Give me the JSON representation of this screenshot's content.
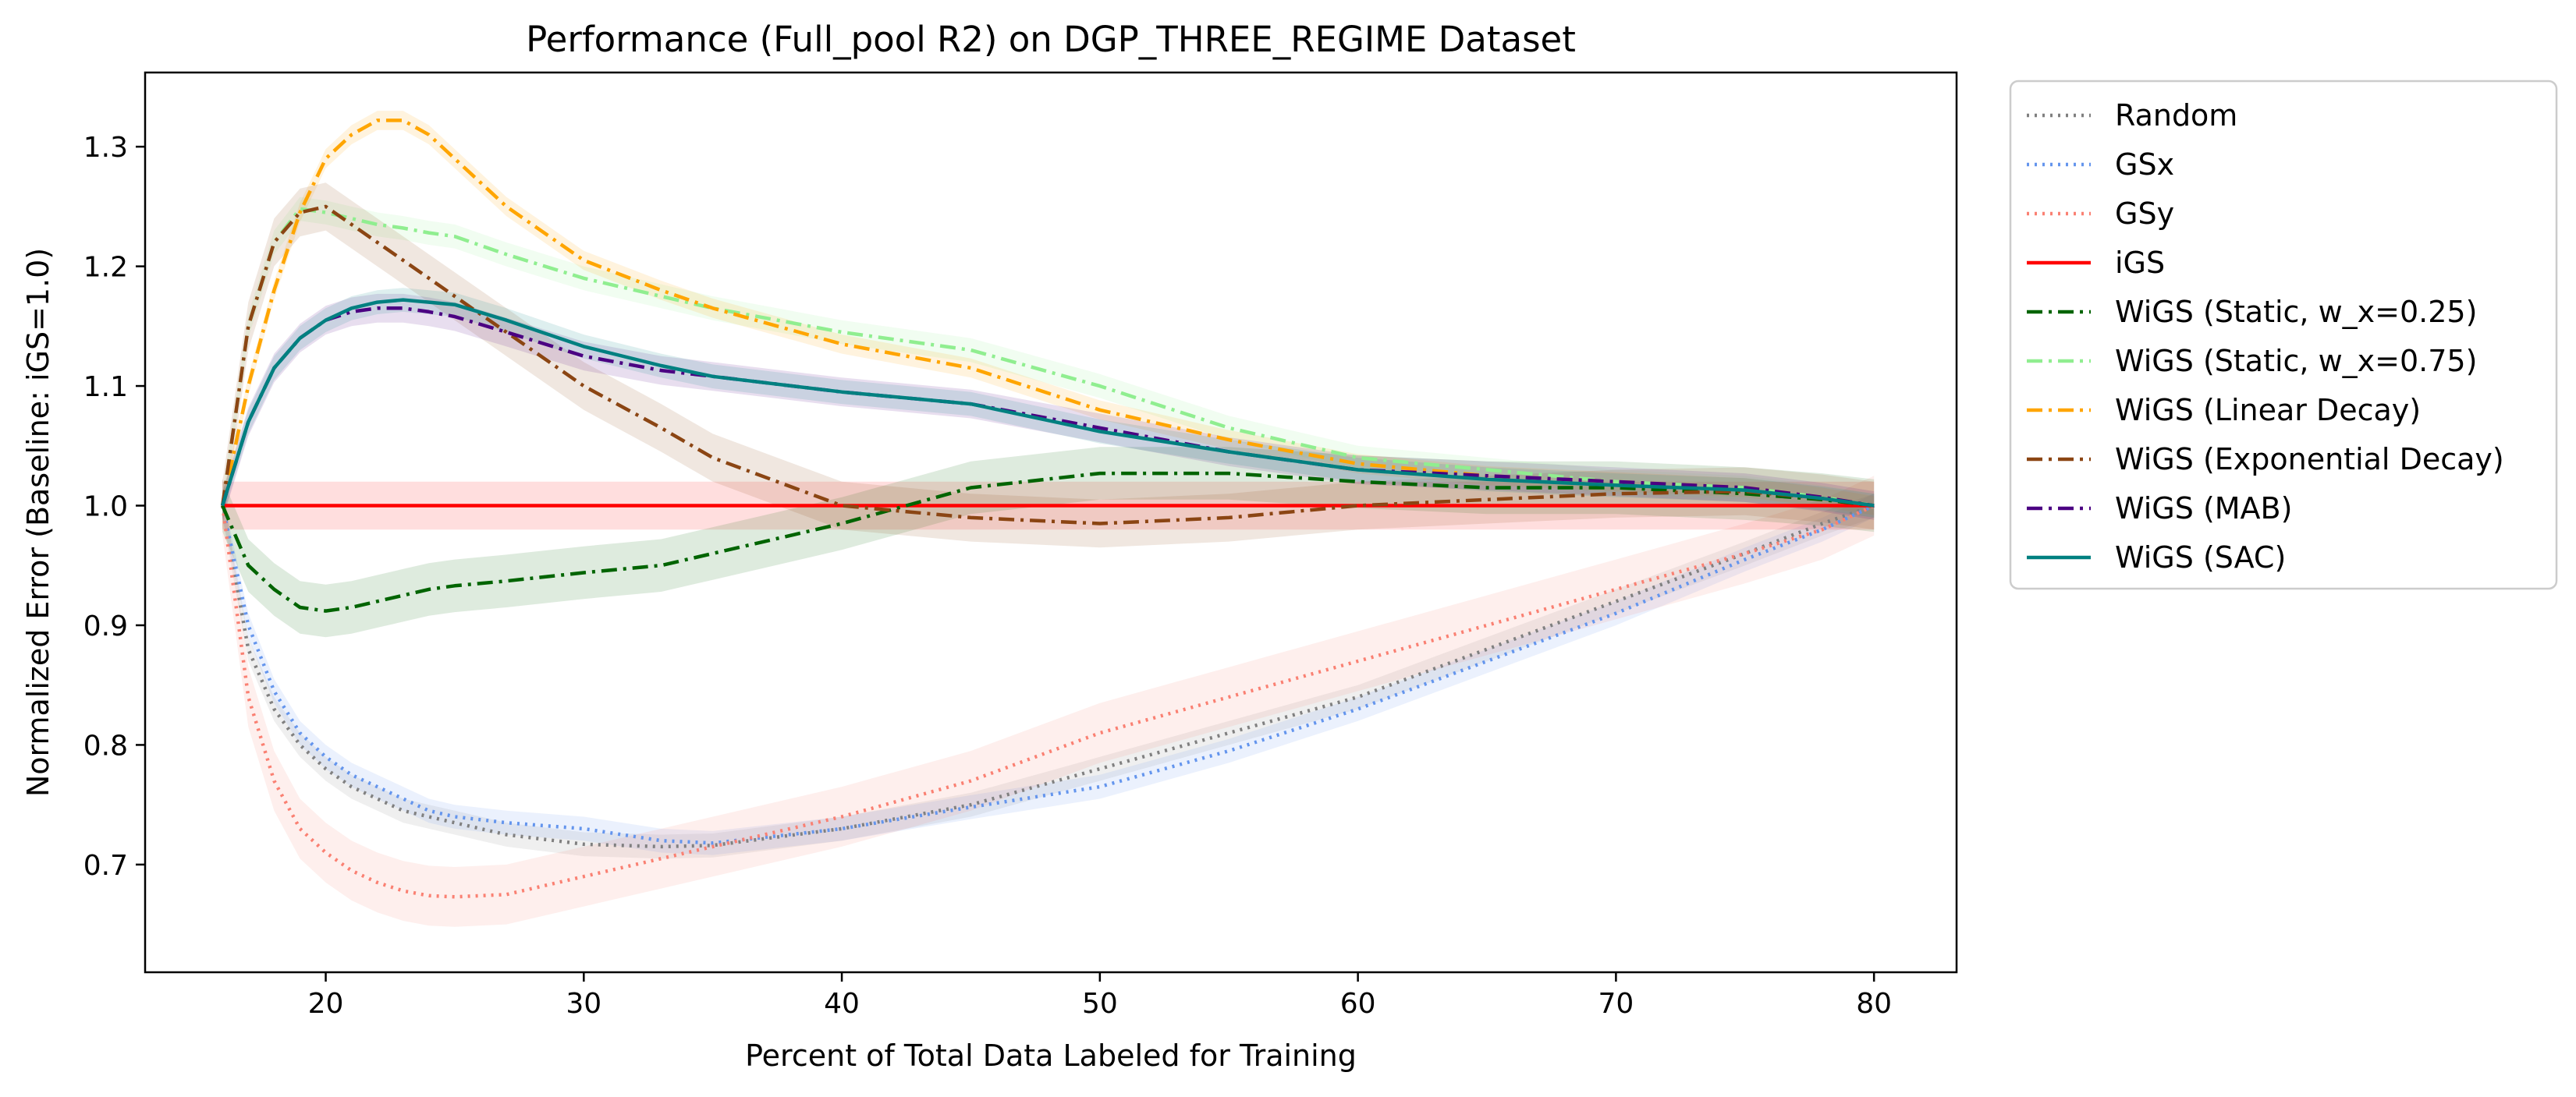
{
  "chart_data": {
    "type": "line",
    "title": "Performance (Full_pool R2) on DGP_THREE_REGIME Dataset",
    "xlabel": "Percent of Total Data Labeled for Training",
    "ylabel": "Normalized Error (Baseline: iGS=1.0)",
    "xlim": [
      13,
      83.2
    ],
    "ylim": [
      0.61,
      1.362
    ],
    "xticks": [
      20,
      30,
      40,
      50,
      60,
      70,
      80
    ],
    "yticks": [
      0.7,
      0.8,
      0.9,
      1.0,
      1.1,
      1.2,
      1.3
    ],
    "xtick_labels": [
      "20",
      "30",
      "40",
      "50",
      "60",
      "70",
      "80"
    ],
    "ytick_labels": [
      "0.7",
      "0.8",
      "0.9",
      "1.0",
      "1.1",
      "1.2",
      "1.3"
    ],
    "grid": false,
    "legend_position": "outside-right",
    "x": [
      16,
      17,
      18,
      19,
      20,
      21,
      22,
      23,
      24,
      25,
      27,
      30,
      33,
      35,
      40,
      45,
      50,
      55,
      60,
      65,
      70,
      75,
      78,
      80
    ],
    "series": [
      {
        "name": "Random",
        "color": "#808080",
        "style": "dotted",
        "values": [
          1.0,
          0.88,
          0.83,
          0.8,
          0.78,
          0.765,
          0.755,
          0.745,
          0.74,
          0.735,
          0.725,
          0.717,
          0.715,
          0.716,
          0.73,
          0.75,
          0.78,
          0.81,
          0.84,
          0.88,
          0.92,
          0.96,
          0.985,
          1.0
        ],
        "band": 0.01
      },
      {
        "name": "GSx",
        "color": "#6495ed",
        "style": "dotted",
        "values": [
          1.0,
          0.9,
          0.845,
          0.81,
          0.79,
          0.775,
          0.765,
          0.755,
          0.745,
          0.74,
          0.735,
          0.73,
          0.72,
          0.718,
          0.73,
          0.748,
          0.765,
          0.795,
          0.83,
          0.87,
          0.91,
          0.955,
          0.98,
          1.0
        ],
        "band": 0.01
      },
      {
        "name": "GSy",
        "color": "#fa8072",
        "style": "dotted",
        "values": [
          1.0,
          0.84,
          0.77,
          0.73,
          0.71,
          0.695,
          0.685,
          0.678,
          0.674,
          0.673,
          0.675,
          0.69,
          0.705,
          0.715,
          0.74,
          0.77,
          0.81,
          0.84,
          0.87,
          0.9,
          0.93,
          0.96,
          0.98,
          1.0
        ],
        "band": 0.025
      },
      {
        "name": "iGS",
        "color": "#ff0000",
        "style": "solid",
        "values": [
          1.0,
          1.0,
          1.0,
          1.0,
          1.0,
          1.0,
          1.0,
          1.0,
          1.0,
          1.0,
          1.0,
          1.0,
          1.0,
          1.0,
          1.0,
          1.0,
          1.0,
          1.0,
          1.0,
          1.0,
          1.0,
          1.0,
          1.0,
          1.0
        ],
        "band": 0.02
      },
      {
        "name": "WiGS (Static, w_x=0.25)",
        "color": "#006400",
        "style": "dashdot",
        "values": [
          1.0,
          0.95,
          0.93,
          0.915,
          0.912,
          0.915,
          0.92,
          0.925,
          0.93,
          0.933,
          0.937,
          0.944,
          0.95,
          0.96,
          0.985,
          1.015,
          1.027,
          1.027,
          1.02,
          1.015,
          1.015,
          1.01,
          1.005,
          1.0
        ],
        "band": 0.022
      },
      {
        "name": "WiGS (Static, w_x=0.75)",
        "color": "#90ee90",
        "style": "dashdot",
        "values": [
          1.0,
          1.15,
          1.22,
          1.248,
          1.245,
          1.24,
          1.235,
          1.232,
          1.228,
          1.225,
          1.21,
          1.19,
          1.175,
          1.165,
          1.145,
          1.13,
          1.1,
          1.065,
          1.04,
          1.03,
          1.02,
          1.015,
          1.007,
          1.0
        ],
        "band": 0.01
      },
      {
        "name": "WiGS (Linear Decay)",
        "color": "#ffa500",
        "style": "dashdot",
        "values": [
          1.0,
          1.1,
          1.18,
          1.245,
          1.29,
          1.31,
          1.322,
          1.322,
          1.31,
          1.29,
          1.25,
          1.205,
          1.18,
          1.165,
          1.135,
          1.115,
          1.08,
          1.055,
          1.035,
          1.025,
          1.02,
          1.015,
          1.007,
          1.0
        ],
        "band": 0.008
      },
      {
        "name": "WiGS (Exponential Decay)",
        "color": "#8b4513",
        "style": "dashdot",
        "values": [
          1.0,
          1.15,
          1.22,
          1.245,
          1.25,
          1.235,
          1.22,
          1.205,
          1.19,
          1.175,
          1.145,
          1.1,
          1.065,
          1.04,
          1.0,
          0.99,
          0.985,
          0.99,
          1.0,
          1.005,
          1.01,
          1.012,
          1.006,
          1.0
        ],
        "band": 0.02
      },
      {
        "name": "WiGS (MAB)",
        "color": "#4b0082",
        "style": "dashdot",
        "values": [
          1.0,
          1.07,
          1.115,
          1.14,
          1.155,
          1.162,
          1.165,
          1.165,
          1.162,
          1.158,
          1.145,
          1.125,
          1.113,
          1.108,
          1.095,
          1.085,
          1.065,
          1.045,
          1.03,
          1.025,
          1.02,
          1.015,
          1.007,
          1.0
        ],
        "band": 0.012
      },
      {
        "name": "WiGS (SAC)",
        "color": "#008080",
        "style": "solid",
        "values": [
          1.0,
          1.07,
          1.115,
          1.14,
          1.155,
          1.165,
          1.17,
          1.172,
          1.17,
          1.168,
          1.155,
          1.133,
          1.117,
          1.108,
          1.095,
          1.085,
          1.062,
          1.045,
          1.03,
          1.022,
          1.017,
          1.013,
          1.006,
          1.0
        ],
        "band": 0.01
      }
    ]
  }
}
